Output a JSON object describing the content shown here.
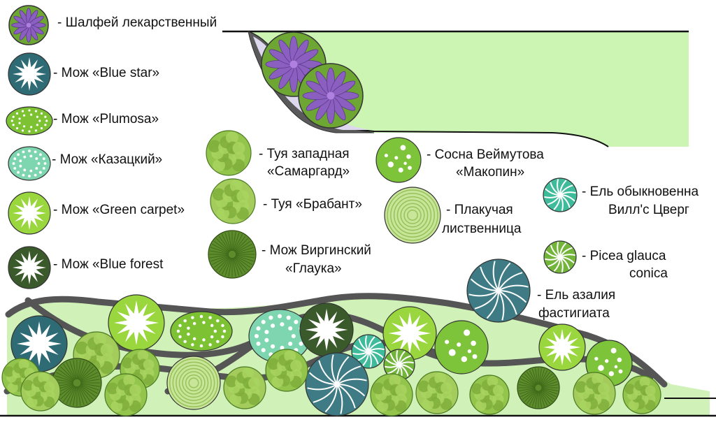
{
  "legend": {
    "salvia": "- Шалфей лекарственный",
    "blue_star": "- Мож «Blue star»",
    "plumosa": "- Мож «Plumosa»",
    "kazatsky": "- Мож «Казацкий»",
    "green_carpet": "- Мож «Green carpet»",
    "blue_forest": "- Мож «Blue forest",
    "thuja_smaragd_1": "- Туя западная",
    "thuja_smaragd_2": "«Самаргард»",
    "thuja_brabant": "- Туя «Брабант»",
    "virginsky_1": "- Мож Виргинский",
    "virginsky_2": "«Глаука»",
    "pine_1": "- Сосна Веймутова",
    "pine_2": "«Макопин»",
    "larch_1": "- Плакучая",
    "larch_2": "лиственница",
    "spruce_will_1": "- Ель обыкновенна",
    "spruce_will_2": "Вилл'с Цверг",
    "picea_1": "- Picea glauca",
    "picea_2": "conica",
    "spruce_azalea_1": "- Ель азалия",
    "spruce_azalea_2": "фастигиата"
  },
  "colors": {
    "lawn": "#ccf5b4",
    "bed_fill": "#d0f2b8",
    "path_stroke": "#585858",
    "salvia_purple": "#8a5fc0",
    "salvia_green": "#6ea633",
    "blue_star": "#2f6b74",
    "plumosa": "#7cc233",
    "kazatsky": "#7ed6b0",
    "green_carpet": "#9ad63d",
    "blue_forest": "#3b5a2b",
    "thuja": "#93c44c",
    "virginsky": "#5e8c2c",
    "pine": "#7ec43a",
    "larch": "#c8e59a",
    "spruce_will": "#3ebb9a",
    "picea": "#72b53a",
    "spruce_azalea": "#3e7b84"
  },
  "icons": [
    "salvia-icon",
    "blue-star-juniper-icon",
    "plumosa-juniper-icon",
    "kazatsky-juniper-icon",
    "green-carpet-juniper-icon",
    "blue-forest-juniper-icon",
    "thuja-smaragd-icon",
    "thuja-brabant-icon",
    "virginia-juniper-icon",
    "weymouth-pine-icon",
    "weeping-larch-icon",
    "spruce-will-icon",
    "picea-glauca-icon",
    "spruce-azalea-icon"
  ]
}
